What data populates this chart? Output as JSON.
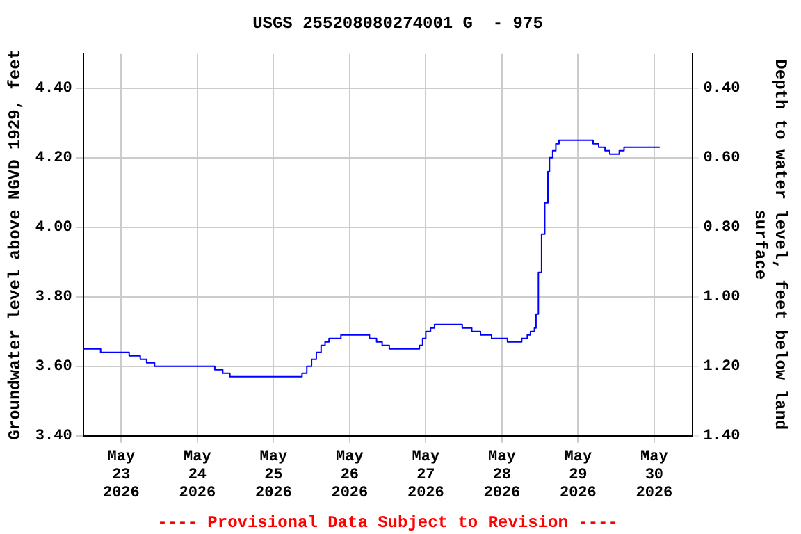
{
  "chart_data": {
    "type": "step",
    "title": "USGS 255208080274001 G  - 975",
    "ylabel": "Groundwater level above NGVD 1929, feet",
    "y2label": "Depth to water level, feet below land surface",
    "annotations": [
      "---- Provisional Data Subject to Revision ----"
    ],
    "x": [
      "2026-05-22T12:00",
      "2026-05-22T17:30",
      "2026-05-23T02:30",
      "2026-05-23T06:00",
      "2026-05-23T08:00",
      "2026-05-23T10:30",
      "2026-05-24T05:30",
      "2026-05-24T08:00",
      "2026-05-24T10:15",
      "2026-05-25T09:00",
      "2026-05-25T10:30",
      "2026-05-25T12:00",
      "2026-05-25T13:30",
      "2026-05-25T15:00",
      "2026-05-25T16:15",
      "2026-05-25T17:30",
      "2026-05-25T21:15",
      "2026-05-26T06:15",
      "2026-05-26T08:30",
      "2026-05-26T10:15",
      "2026-05-26T12:30",
      "2026-05-26T22:00",
      "2026-05-26T23:00",
      "2026-05-27T00:00",
      "2026-05-27T01:30",
      "2026-05-27T02:45",
      "2026-05-27T11:30",
      "2026-05-27T14:30",
      "2026-05-27T17:15",
      "2026-05-27T20:45",
      "2026-05-28T01:45",
      "2026-05-28T06:15",
      "2026-05-28T08:00",
      "2026-05-28T09:00",
      "2026-05-28T10:15",
      "2026-05-28T10:45",
      "2026-05-28T11:30",
      "2026-05-28T12:30",
      "2026-05-28T13:30",
      "2026-05-28T14:30",
      "2026-05-28T15:00",
      "2026-05-28T16:00",
      "2026-05-28T17:00",
      "2026-05-28T18:00",
      "2026-05-29T04:45",
      "2026-05-29T06:30",
      "2026-05-29T08:30",
      "2026-05-29T10:00",
      "2026-05-29T13:00",
      "2026-05-29T14:30",
      "2026-05-30T01:45"
    ],
    "series": [
      {
        "color": "#0000ff",
        "values": [
          3.65,
          3.64,
          3.63,
          3.62,
          3.61,
          3.6,
          3.59,
          3.58,
          3.57,
          3.58,
          3.6,
          3.62,
          3.64,
          3.66,
          3.67,
          3.68,
          3.69,
          3.68,
          3.67,
          3.66,
          3.65,
          3.66,
          3.68,
          3.7,
          3.71,
          3.72,
          3.71,
          3.7,
          3.69,
          3.68,
          3.67,
          3.68,
          3.69,
          3.7,
          3.71,
          3.75,
          3.87,
          3.98,
          4.07,
          4.16,
          4.2,
          4.22,
          4.24,
          4.25,
          4.24,
          4.23,
          4.22,
          4.21,
          4.22,
          4.23,
          4.23
        ]
      }
    ],
    "xlim": [
      "2026-05-22T12:00",
      "2026-05-30T12:00"
    ],
    "xticks": [
      {
        "value": "2026-05-23",
        "label": "May\n23\n2026"
      },
      {
        "value": "2026-05-24",
        "label": "May\n24\n2026"
      },
      {
        "value": "2026-05-25",
        "label": "May\n25\n2026"
      },
      {
        "value": "2026-05-26",
        "label": "May\n26\n2026"
      },
      {
        "value": "2026-05-27",
        "label": "May\n27\n2026"
      },
      {
        "value": "2026-05-28",
        "label": "May\n28\n2026"
      },
      {
        "value": "2026-05-29",
        "label": "May\n29\n2026"
      },
      {
        "value": "2026-05-30",
        "label": "May\n30\n2026"
      }
    ],
    "ylim": [
      3.4,
      4.5
    ],
    "yticks": [
      {
        "value": 3.4,
        "label": "3.40"
      },
      {
        "value": 3.6,
        "label": "3.60"
      },
      {
        "value": 3.8,
        "label": "3.80"
      },
      {
        "value": 4.0,
        "label": "4.00"
      },
      {
        "value": 4.2,
        "label": "4.20"
      },
      {
        "value": 4.4,
        "label": "4.40"
      }
    ],
    "y2lim": [
      1.4,
      0.3
    ],
    "y2ticks": [
      {
        "value": 0.4,
        "label": "0.40"
      },
      {
        "value": 0.6,
        "label": "0.60"
      },
      {
        "value": 0.8,
        "label": "0.80"
      },
      {
        "value": 1.0,
        "label": "1.00"
      },
      {
        "value": 1.2,
        "label": "1.20"
      },
      {
        "value": 1.4,
        "label": "1.40"
      }
    ],
    "grid": true
  }
}
